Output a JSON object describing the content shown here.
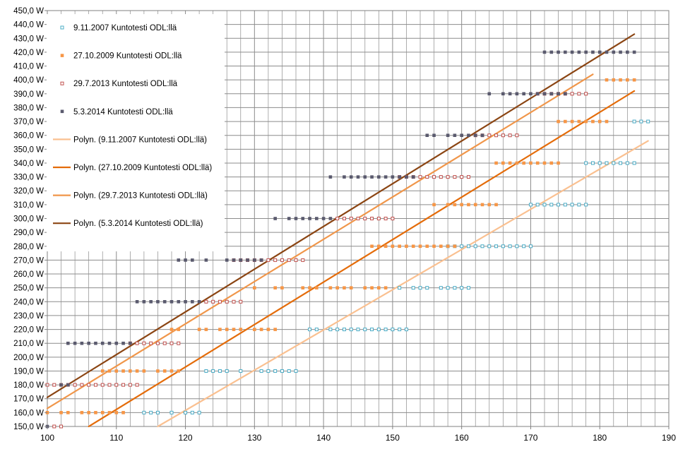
{
  "chart_data": {
    "type": "scatter",
    "title": "",
    "xlabel": "",
    "ylabel": "",
    "xlim": [
      100,
      190
    ],
    "ylim": [
      150,
      450
    ],
    "x_ticks": [
      100,
      110,
      120,
      130,
      140,
      150,
      160,
      170,
      180,
      190
    ],
    "x_tick_labels": [
      "100",
      "110",
      "120",
      "130",
      "140",
      "150",
      "160",
      "170",
      "180",
      "190"
    ],
    "y_ticks": [
      150,
      160,
      170,
      180,
      190,
      200,
      210,
      220,
      230,
      240,
      250,
      260,
      270,
      280,
      290,
      300,
      310,
      320,
      330,
      340,
      350,
      360,
      370,
      380,
      390,
      400,
      410,
      420,
      430,
      440,
      450
    ],
    "y_tick_labels": [
      "150,0 W",
      "160,0 W",
      "170,0 W",
      "180,0 W",
      "190,0 W",
      "200,0 W",
      "210,0 W",
      "220,0 W",
      "230,0 W",
      "240,0 W",
      "250,0 W",
      "260,0 W",
      "270,0 W",
      "280,0 W",
      "290,0 W",
      "300,0 W",
      "310,0 W",
      "320,0 W",
      "330,0 W",
      "340,0 W",
      "350,0 W",
      "360,0 W",
      "370,0 W",
      "380,0 W",
      "390,0 W",
      "400,0 W",
      "410,0 W",
      "420,0 W",
      "430,0 W",
      "440,0 W",
      "450,0 W"
    ],
    "grid": true,
    "legend_position": "top-left",
    "series": [
      {
        "name": "9.11.2007 Kuntotesti ODL:llä",
        "color": "#4bacc6",
        "marker": "square-hollow",
        "segments": [
          {
            "y": 160,
            "x": [
              114,
              115,
              116,
              118,
              120,
              121,
              122
            ]
          },
          {
            "y": 190,
            "x": [
              123,
              124,
              125,
              126,
              128,
              131,
              132,
              133,
              134,
              135,
              136
            ]
          },
          {
            "y": 220,
            "x": [
              138,
              139,
              141,
              142,
              143,
              144,
              145,
              146,
              147,
              148,
              149,
              150,
              151,
              152
            ]
          },
          {
            "y": 250,
            "x": [
              151,
              153,
              154,
              155,
              157,
              158,
              159,
              160,
              161
            ]
          },
          {
            "y": 280,
            "x": [
              158,
              159,
              160,
              161,
              162,
              163,
              164,
              165,
              166,
              167,
              168,
              169,
              170
            ]
          },
          {
            "y": 310,
            "x": [
              170,
              171,
              172,
              173,
              174,
              175,
              176,
              177,
              178
            ]
          },
          {
            "y": 340,
            "x": [
              178,
              179,
              180,
              181,
              182,
              183,
              184,
              185
            ]
          },
          {
            "y": 370,
            "x": [
              185,
              186,
              187
            ]
          }
        ]
      },
      {
        "name": "27.10.2009 Kuntotesti ODL:llä",
        "color": "#f79646",
        "marker": "square",
        "segments": [
          {
            "y": 160,
            "x": [
              100,
              102,
              103,
              105,
              106,
              107,
              108,
              109,
              110,
              111
            ]
          },
          {
            "y": 190,
            "x": [
              108,
              109,
              110,
              111,
              112,
              113,
              114,
              116,
              117,
              118,
              119
            ]
          },
          {
            "y": 220,
            "x": [
              118,
              119,
              122,
              123,
              125,
              126,
              127,
              128,
              130,
              131,
              132,
              133
            ]
          },
          {
            "y": 250,
            "x": [
              130,
              133,
              134,
              137,
              138,
              139,
              141,
              142,
              143,
              144,
              146,
              147,
              148,
              149
            ]
          },
          {
            "y": 280,
            "x": [
              147,
              148,
              149,
              150,
              151,
              152,
              153,
              154,
              155,
              156,
              157,
              158,
              159
            ]
          },
          {
            "y": 310,
            "x": [
              156,
              158,
              159,
              160,
              161,
              162,
              163,
              164,
              165
            ]
          },
          {
            "y": 340,
            "x": [
              165,
              166,
              167,
              168,
              169,
              170,
              171,
              172,
              173,
              174
            ]
          },
          {
            "y": 370,
            "x": [
              174,
              175,
              176,
              177,
              178,
              179,
              180,
              181
            ]
          },
          {
            "y": 400,
            "x": [
              181,
              182,
              183,
              184,
              185
            ]
          }
        ]
      },
      {
        "name": "29.7.2013 Kuntotesti ODL:llä",
        "color": "#c0504d",
        "marker": "square-hollow",
        "segments": [
          {
            "y": 150,
            "x": [
              101,
              102
            ]
          },
          {
            "y": 180,
            "x": [
              100,
              101,
              102,
              103,
              104,
              105,
              106,
              107,
              108,
              109,
              110,
              111,
              112,
              113
            ]
          },
          {
            "y": 210,
            "x": [
              112,
              113,
              114,
              115,
              116,
              117,
              118,
              119
            ]
          },
          {
            "y": 240,
            "x": [
              123,
              124,
              125,
              126,
              127,
              128
            ]
          },
          {
            "y": 270,
            "x": [
              127,
              128,
              129,
              130,
              131,
              132,
              133,
              134,
              135,
              136,
              137
            ]
          },
          {
            "y": 300,
            "x": [
              142,
              143,
              144,
              145,
              146,
              147,
              148,
              149,
              150
            ]
          },
          {
            "y": 330,
            "x": [
              151,
              152,
              153,
              154,
              155,
              156,
              157,
              158,
              159,
              160,
              161
            ]
          },
          {
            "y": 360,
            "x": [
              162,
              163,
              164,
              165,
              166,
              167,
              168
            ]
          },
          {
            "y": 390,
            "x": [
              171,
              172,
              173,
              174,
              175,
              176,
              177,
              178
            ]
          }
        ]
      },
      {
        "name": "5.3.2014 Kuntotesti ODL:llä",
        "color": "#5a5a6e",
        "marker": "square",
        "segments": [
          {
            "y": 150,
            "x": [
              100
            ]
          },
          {
            "y": 180,
            "x": [
              102,
              103
            ]
          },
          {
            "y": 210,
            "x": [
              103,
              104,
              105,
              106,
              107,
              108,
              109,
              110,
              111,
              112
            ]
          },
          {
            "y": 240,
            "x": [
              113,
              114,
              115,
              116,
              117,
              118,
              119,
              120,
              121,
              122
            ]
          },
          {
            "y": 270,
            "x": [
              119,
              120,
              121,
              123
            ]
          },
          {
            "y": 270,
            "x": [
              126,
              127,
              128,
              129,
              130,
              131
            ]
          },
          {
            "y": 300,
            "x": [
              133,
              135,
              136,
              137,
              138,
              139,
              140,
              141
            ]
          },
          {
            "y": 330,
            "x": [
              141,
              143,
              144,
              145,
              146,
              147,
              148,
              149,
              150,
              151,
              152,
              153
            ]
          },
          {
            "y": 360,
            "x": [
              155,
              156,
              158,
              159,
              160,
              161,
              162,
              163
            ]
          },
          {
            "y": 390,
            "x": [
              164,
              166,
              167,
              168,
              169,
              170,
              171,
              172,
              173,
              174,
              175
            ]
          },
          {
            "y": 420,
            "x": [
              172,
              173,
              174,
              175,
              176,
              177,
              178,
              179,
              180,
              181,
              182,
              183,
              184,
              185
            ]
          }
        ]
      },
      {
        "name": "Polyn. (9.11.2007 Kuntotesti ODL:llä)",
        "color": "#fac090",
        "type": "trendline",
        "points": [
          [
            116,
            150
          ],
          [
            187,
            356
          ]
        ]
      },
      {
        "name": "Polyn. (27.10.2009 Kuntotesti ODL:llä)",
        "color": "#e46c0a",
        "type": "trendline",
        "points": [
          [
            106,
            150
          ],
          [
            185,
            392
          ]
        ]
      },
      {
        "name": "Polyn. (29.7.2013 Kuntotesti ODL:llä)",
        "color": "#f0964a",
        "type": "trendline",
        "points": [
          [
            100,
            163
          ],
          [
            179,
            404
          ]
        ]
      },
      {
        "name": "Polyn. (5.3.2014 Kuntotesti ODL:llä)",
        "color": "#8b4513",
        "type": "trendline",
        "points": [
          [
            100,
            171
          ],
          [
            185,
            433
          ]
        ]
      }
    ]
  }
}
